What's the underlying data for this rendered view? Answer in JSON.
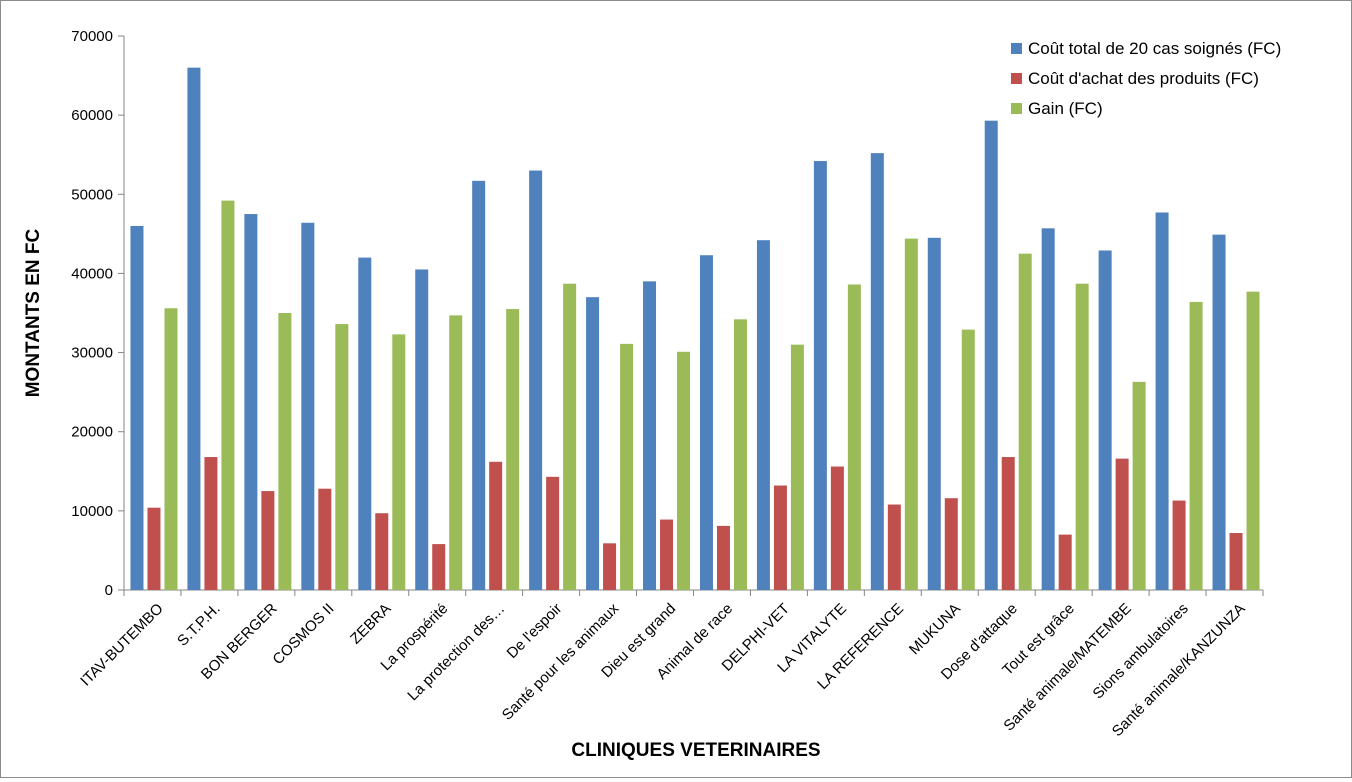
{
  "chart_data": {
    "type": "bar",
    "title": "",
    "xlabel": "CLINIQUES VETERINAIRES",
    "ylabel": "MONTANTS EN FC",
    "ylim": [
      0,
      70000
    ],
    "yticks": [
      0,
      10000,
      20000,
      30000,
      40000,
      50000,
      60000,
      70000
    ],
    "grid": false,
    "legend_position": "top-right",
    "categories": [
      "ITAV-BUTEMBO",
      "S.T.P.H.",
      "BON BERGER",
      "COSMOS II",
      "ZEBRA",
      "La prospérité",
      "La protection des…",
      "De l'espoir",
      "Santé pour les animaux",
      "Dieu est grand",
      "Animal de race",
      "DELPHI-VET",
      "LA VITALYTE",
      "LA REFERENCE",
      "MUKUNA",
      "Dose d'attaque",
      "Tout est grâce",
      "Santé animale/MATEMBE",
      "Sions ambulatoires",
      "Santé animale/KANZUNZA"
    ],
    "series": [
      {
        "name": "Coût total de 20 cas soignés (FC)",
        "color": "#4f81bd",
        "values": [
          46000,
          66000,
          47500,
          46400,
          42000,
          40500,
          51700,
          53000,
          37000,
          39000,
          42300,
          44200,
          54200,
          55200,
          44500,
          59300,
          45700,
          42900,
          47700,
          44900
        ]
      },
      {
        "name": "Coût d'achat des produits (FC)",
        "color": "#c0504d",
        "values": [
          10400,
          16800,
          12500,
          12800,
          9700,
          5800,
          16200,
          14300,
          5900,
          8900,
          8100,
          13200,
          15600,
          10800,
          11600,
          16800,
          7000,
          16600,
          11300,
          7200
        ]
      },
      {
        "name": "Gain (FC)",
        "color": "#9bbb59",
        "values": [
          35600,
          49200,
          35000,
          33600,
          32300,
          34700,
          35500,
          38700,
          31100,
          30100,
          34200,
          31000,
          38600,
          44400,
          32900,
          42500,
          38700,
          26300,
          36400,
          37700
        ]
      }
    ]
  }
}
